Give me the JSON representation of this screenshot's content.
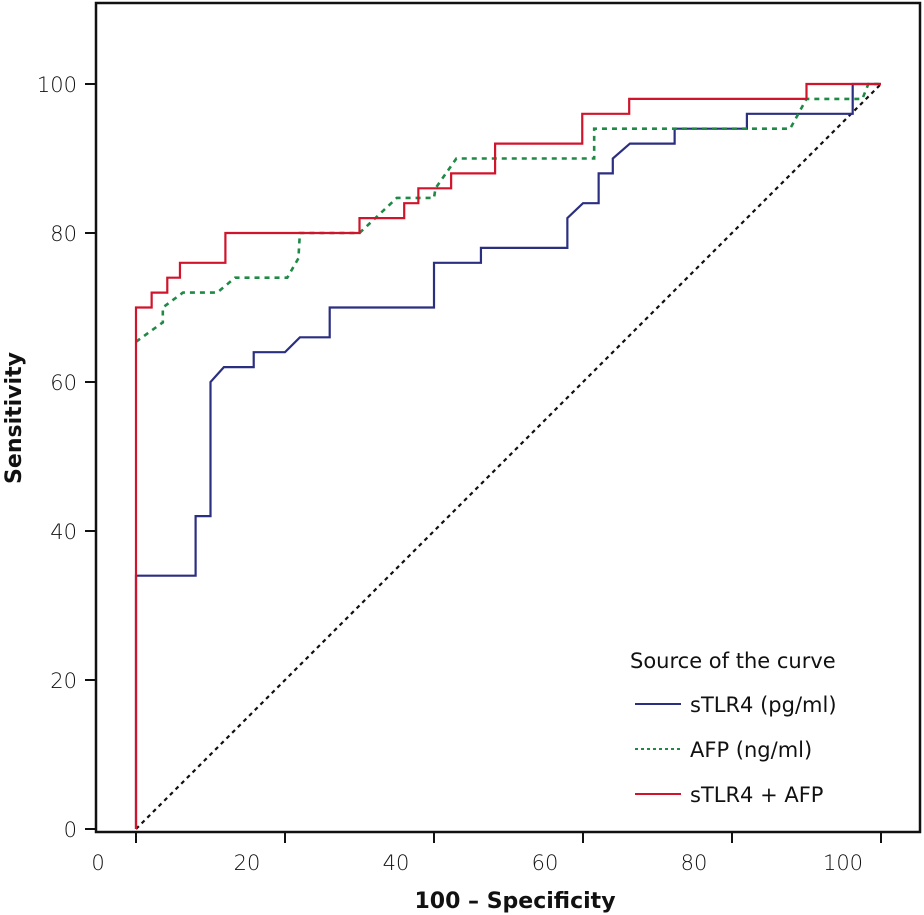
{
  "chart_data": {
    "type": "line",
    "title": "",
    "xlabel": "100 – Specificity",
    "ylabel": "Sensitivity",
    "xlim": [
      0,
      100
    ],
    "ylim": [
      0,
      100
    ],
    "x_ticks": [
      "0",
      "20",
      "40",
      "60",
      "80",
      "100"
    ],
    "x_tick_values": [
      0,
      20,
      40,
      60,
      80,
      100
    ],
    "y_ticks": [
      "0",
      "20",
      "40",
      "60",
      "80",
      "100"
    ],
    "y_tick_values": [
      0,
      20,
      40,
      60,
      80,
      100
    ],
    "grid": false,
    "legend": {
      "title": "Source of the curve",
      "placement": "bottom-right"
    },
    "reference_line": {
      "name": "Reference line",
      "style": "dotted",
      "color": "#111111",
      "points": [
        [
          0,
          0
        ],
        [
          100,
          100
        ]
      ]
    },
    "series": [
      {
        "name": "sTLR4 (pg/ml)",
        "color": "#2b2f80",
        "style": "solid",
        "points": [
          [
            0,
            0
          ],
          [
            0,
            34
          ],
          [
            8,
            34
          ],
          [
            8,
            42
          ],
          [
            10,
            42
          ],
          [
            10,
            60
          ],
          [
            11.8,
            62
          ],
          [
            15.8,
            62
          ],
          [
            15.8,
            64
          ],
          [
            20,
            64
          ],
          [
            22,
            66
          ],
          [
            26,
            66
          ],
          [
            26,
            70
          ],
          [
            40,
            70
          ],
          [
            40,
            76
          ],
          [
            46.3,
            76
          ],
          [
            46.3,
            78
          ],
          [
            57.9,
            78
          ],
          [
            57.9,
            82
          ],
          [
            60,
            84
          ],
          [
            62.1,
            84
          ],
          [
            62.1,
            88
          ],
          [
            64,
            88
          ],
          [
            64,
            90
          ],
          [
            66.3,
            92
          ],
          [
            72.3,
            92
          ],
          [
            72.3,
            94
          ],
          [
            82,
            94
          ],
          [
            82,
            96
          ],
          [
            96.2,
            96
          ],
          [
            96.2,
            100
          ],
          [
            100,
            100
          ]
        ]
      },
      {
        "name": "AFP (ng/ml)",
        "color": "#1e8a45",
        "style": "dashed",
        "points": [
          [
            0,
            65.4
          ],
          [
            3.6,
            68
          ],
          [
            3.6,
            70
          ],
          [
            6.3,
            72
          ],
          [
            10.9,
            72
          ],
          [
            13.3,
            74
          ],
          [
            20.3,
            74
          ],
          [
            21.8,
            76.6
          ],
          [
            22,
            80
          ],
          [
            30,
            80
          ],
          [
            35,
            84.7
          ],
          [
            40,
            84.7
          ],
          [
            40.2,
            86
          ],
          [
            43,
            90
          ],
          [
            61.5,
            90
          ],
          [
            61.5,
            94
          ],
          [
            87.8,
            94
          ],
          [
            90,
            98
          ],
          [
            97.5,
            98
          ],
          [
            98.3,
            100
          ],
          [
            100,
            100
          ]
        ]
      },
      {
        "name": "sTLR4 + AFP",
        "color": "#d0142b",
        "style": "solid",
        "points": [
          [
            0,
            0
          ],
          [
            0,
            70
          ],
          [
            2.1,
            70
          ],
          [
            2.1,
            72
          ],
          [
            4.2,
            72
          ],
          [
            4.2,
            74
          ],
          [
            5.9,
            74
          ],
          [
            5.9,
            76
          ],
          [
            12,
            76
          ],
          [
            12,
            80
          ],
          [
            30,
            80
          ],
          [
            30,
            82
          ],
          [
            36,
            82
          ],
          [
            36,
            84
          ],
          [
            37.9,
            84
          ],
          [
            37.9,
            86
          ],
          [
            42.3,
            86
          ],
          [
            42.3,
            88
          ],
          [
            48.2,
            88
          ],
          [
            48.2,
            92
          ],
          [
            59.9,
            92
          ],
          [
            59.9,
            96
          ],
          [
            66.2,
            96
          ],
          [
            66.2,
            98
          ],
          [
            90,
            98
          ],
          [
            90,
            100
          ],
          [
            100,
            100
          ]
        ]
      }
    ]
  }
}
